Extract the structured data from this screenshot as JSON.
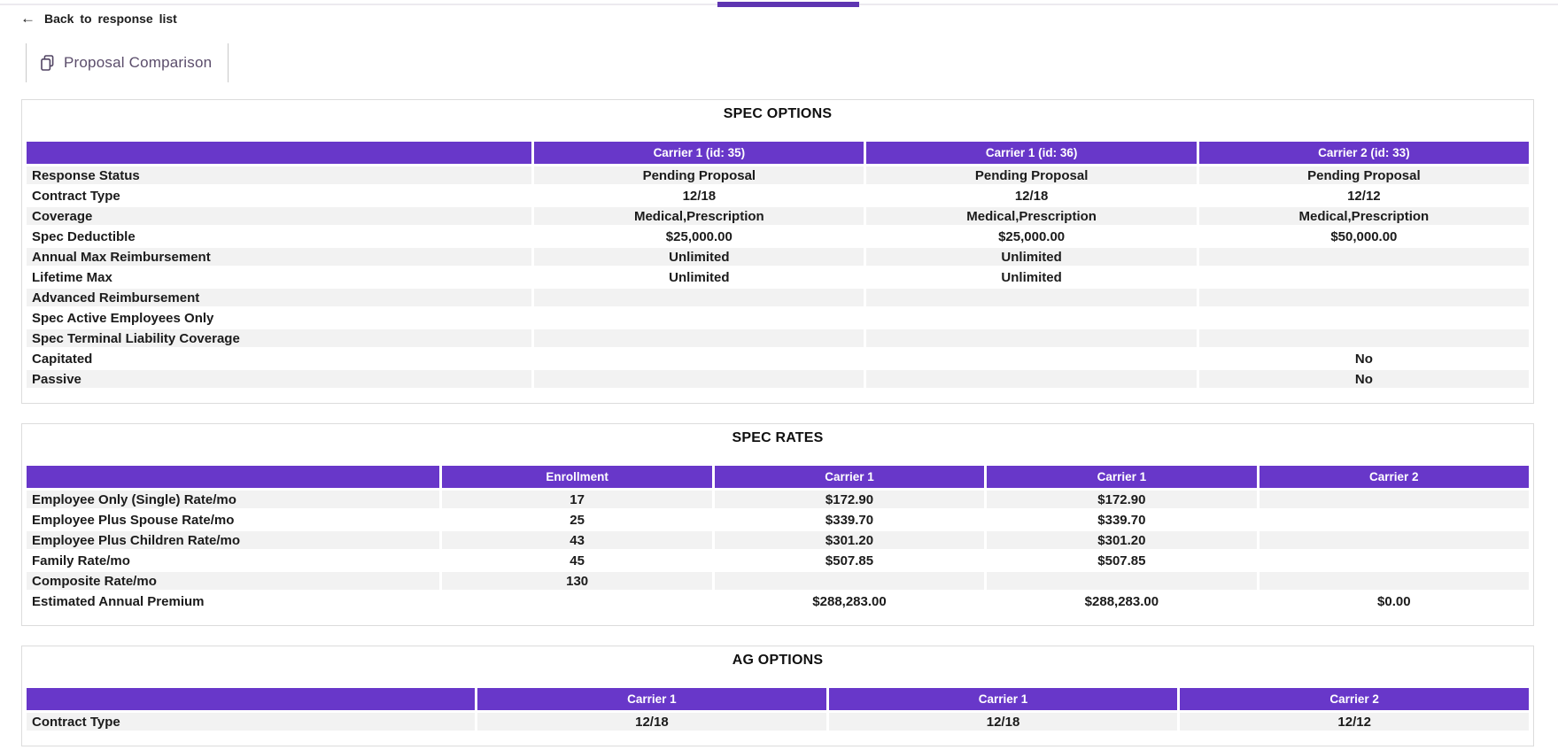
{
  "colors": {
    "accent": "#6837c9",
    "tab_indicator": "#5e35b1",
    "row_stripe": "#f2f2f2"
  },
  "icons": {
    "back_arrow": "←",
    "tab_icon_name": "copy-icon"
  },
  "top": {
    "back_label": "Back to response list"
  },
  "toolbar": {
    "tab_label": "Proposal Comparison"
  },
  "sections": [
    {
      "id": "spec-options",
      "title": "SPEC OPTIONS",
      "columns": [
        "",
        "Carrier 1 (id: 35)",
        "Carrier 1 (id: 36)",
        "Carrier 2 (id: 33)"
      ],
      "rows": [
        {
          "label": "Response Status",
          "values": [
            "Pending Proposal",
            "Pending Proposal",
            "Pending Proposal"
          ]
        },
        {
          "label": "Contract Type",
          "values": [
            "12/18",
            "12/18",
            "12/12"
          ]
        },
        {
          "label": "Coverage",
          "values": [
            "Medical,Prescription",
            "Medical,Prescription",
            "Medical,Prescription"
          ]
        },
        {
          "label": "Spec Deductible",
          "values": [
            "$25,000.00",
            "$25,000.00",
            "$50,000.00"
          ]
        },
        {
          "label": "Annual Max Reimbursement",
          "values": [
            "Unlimited",
            "Unlimited",
            ""
          ]
        },
        {
          "label": "Lifetime Max",
          "values": [
            "Unlimited",
            "Unlimited",
            ""
          ]
        },
        {
          "label": "Advanced Reimbursement",
          "values": [
            "",
            "",
            ""
          ]
        },
        {
          "label": "Spec Active Employees Only",
          "values": [
            "",
            "",
            ""
          ]
        },
        {
          "label": "Spec Terminal Liability Coverage",
          "values": [
            "",
            "",
            ""
          ]
        },
        {
          "label": "Capitated",
          "values": [
            "",
            "",
            "No"
          ]
        },
        {
          "label": "Passive",
          "values": [
            "",
            "",
            "No"
          ]
        }
      ]
    },
    {
      "id": "spec-rates",
      "title": "SPEC RATES",
      "columns": [
        "",
        "Enrollment",
        "Carrier 1",
        "Carrier 1",
        "Carrier 2"
      ],
      "rows": [
        {
          "label": "Employee Only (Single) Rate/mo",
          "values": [
            "17",
            "$172.90",
            "$172.90",
            ""
          ]
        },
        {
          "label": "Employee Plus Spouse Rate/mo",
          "values": [
            "25",
            "$339.70",
            "$339.70",
            ""
          ]
        },
        {
          "label": "Employee Plus Children Rate/mo",
          "values": [
            "43",
            "$301.20",
            "$301.20",
            ""
          ]
        },
        {
          "label": "Family Rate/mo",
          "values": [
            "45",
            "$507.85",
            "$507.85",
            ""
          ]
        },
        {
          "label": "Composite Rate/mo",
          "values": [
            "130",
            "",
            "",
            ""
          ]
        },
        {
          "label": "Estimated Annual Premium",
          "values": [
            "",
            "$288,283.00",
            "$288,283.00",
            "$0.00"
          ]
        }
      ]
    },
    {
      "id": "ag-options",
      "title": "AG OPTIONS",
      "columns": [
        "",
        "Carrier 1",
        "Carrier 1",
        "Carrier 2"
      ],
      "rows": [
        {
          "label": "Contract Type",
          "values": [
            "12/18",
            "12/18",
            "12/12"
          ]
        }
      ]
    }
  ]
}
